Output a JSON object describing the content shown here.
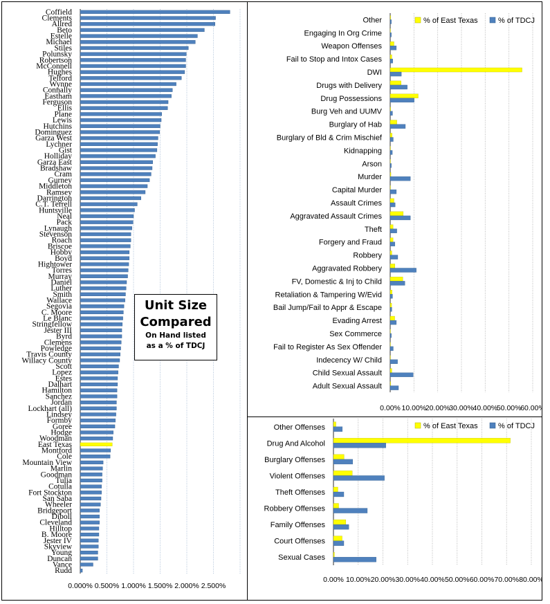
{
  "chart_data": [
    {
      "type": "bar",
      "orientation": "horizontal",
      "categories": [
        "Coffield",
        "Clements",
        "Allred",
        "Beto",
        "Estelle",
        "Michael",
        "Stiles",
        "Polunsky",
        "Robertson",
        "McConnell",
        "Hughes",
        "Telford",
        "Wynne",
        "Connally",
        "Eastham",
        "Ferguson",
        "Ellis",
        "Plane",
        "Lewis",
        "Hutchins",
        "Dominguez",
        "Garza West",
        "Lychner",
        "Gist",
        "Holliday",
        "Garza East",
        "Bradshaw",
        "Cram",
        "Gurney",
        "Middleton",
        "Ramsey",
        "Darrington",
        "C.T. Terrell",
        "Huntsville",
        "Neal",
        "Pack",
        "Lynaugh",
        "Stevenson",
        "Roach",
        "Briscoe",
        "Hobby",
        "Boyd",
        "Hightower",
        "Torres",
        "Murray",
        "Daniel",
        "Luther",
        "Smith",
        "Wallace",
        "Segovia",
        "C. Moore",
        "Le Blanc",
        "Stringfellow",
        "Jester III",
        "Byrd",
        "Clemens",
        "Powledge",
        "Travis County",
        "Willacy County",
        "Scott",
        "Lopez",
        "Estes",
        "Dalhart",
        "Hamilton",
        "Sanchez",
        "Jordan",
        "Lockhart (all)",
        "Lindsey",
        "Formby",
        "Goree",
        "Hodge",
        "Woodman",
        "East Texas",
        "Montford",
        "Cole",
        "Mountain View",
        "Marlin",
        "Goodman",
        "Tulia",
        "Cotulla",
        "Fort Stockton",
        "San Saba",
        "Wheeler",
        "Bridgeport",
        "Diboll",
        "Cleveland",
        "Hilltop",
        "B. Moore",
        "Jester IV",
        "Skyview",
        "Young",
        "Duncan",
        "Vance",
        "Rudd"
      ],
      "values": [
        2.81,
        2.54,
        2.53,
        2.33,
        2.2,
        2.16,
        2.03,
        1.99,
        1.98,
        1.98,
        1.96,
        1.9,
        1.8,
        1.73,
        1.71,
        1.65,
        1.64,
        1.53,
        1.52,
        1.5,
        1.49,
        1.46,
        1.45,
        1.44,
        1.41,
        1.36,
        1.35,
        1.33,
        1.3,
        1.26,
        1.22,
        1.14,
        1.07,
        1.02,
        1.0,
        0.99,
        0.97,
        0.95,
        0.95,
        0.94,
        0.92,
        0.92,
        0.91,
        0.9,
        0.89,
        0.87,
        0.86,
        0.85,
        0.84,
        0.82,
        0.81,
        0.8,
        0.79,
        0.78,
        0.78,
        0.77,
        0.76,
        0.75,
        0.74,
        0.72,
        0.71,
        0.7,
        0.7,
        0.69,
        0.69,
        0.68,
        0.68,
        0.67,
        0.66,
        0.65,
        0.62,
        0.61,
        0.6,
        0.57,
        0.56,
        0.43,
        0.42,
        0.41,
        0.41,
        0.4,
        0.4,
        0.39,
        0.38,
        0.36,
        0.36,
        0.36,
        0.35,
        0.35,
        0.34,
        0.34,
        0.33,
        0.33,
        0.24,
        0.04
      ],
      "highlight": "East Texas",
      "xlim": [
        0,
        3.0
      ],
      "xticks": [
        "0.000%",
        "0.500%",
        "1.000%",
        "1.500%",
        "2.000%",
        "2.500%"
      ],
      "grid": true,
      "colors": {
        "bar": "#4f81bd",
        "highlight": "#ffff00"
      }
    },
    {
      "type": "bar",
      "orientation": "horizontal",
      "categories": [
        "Other",
        "Engaging In Org Crime",
        "Weapon Offenses",
        "Fail to Stop and Intox Cases",
        "DWI",
        "Drugs with Delivery",
        "Drug Possessions",
        "Burg Veh and UUMV",
        "Burglary of Hab",
        "Burglary of Bld & Crim Mischief",
        "Kidnapping",
        "Arson",
        "Murder",
        "Capital Murder",
        "Assault Crimes",
        "Aggravated Assault Crimes",
        "Theft",
        "Forgery and Fraud",
        "Robbery",
        "Aggravated Robbery",
        "FV, Domestic & Inj to Child",
        "Retaliation & Tampering  W/Evid",
        "Bail Jump/Fail to Appr & Escape",
        "Evading Arrest",
        "Sex Commerce",
        "Fail to Register As Sex Offender",
        "Indecency W/ Child",
        "Child Sexual Assault",
        "Adult Sexual Assault"
      ],
      "series": [
        {
          "name": "% of East Texas",
          "values": [
            0.2,
            0.1,
            1.6,
            0.7,
            55.5,
            4.6,
            11.8,
            0.2,
            2.8,
            0.8,
            0.1,
            0.1,
            0.3,
            0.1,
            1.6,
            5.5,
            1.2,
            1.2,
            0.7,
            2.0,
            5.3,
            0.8,
            0.6,
            1.9,
            0.1,
            0.1,
            0.1,
            0.7,
            0.2
          ]
        },
        {
          "name": "% of TDCJ",
          "values": [
            0.5,
            0.5,
            2.6,
            1.1,
            4.7,
            7.2,
            10.1,
            1.0,
            6.4,
            1.3,
            0.9,
            0.5,
            8.5,
            2.6,
            2.1,
            8.5,
            2.8,
            2.0,
            3.2,
            11.0,
            6.2,
            1.0,
            0.7,
            2.6,
            0.5,
            1.3,
            3.1,
            9.7,
            3.5
          ]
        }
      ],
      "xlim": [
        0,
        60
      ],
      "xticks": [
        "0.00%",
        "10.00%",
        "20.00%",
        "30.00%",
        "40.00%",
        "50.00%",
        "60.00%"
      ],
      "legend": "top-right",
      "grid": true,
      "colors": {
        "% of East Texas": "#ffff00",
        "% of TDCJ": "#4f81bd"
      }
    },
    {
      "type": "bar",
      "orientation": "horizontal",
      "categories": [
        "Other Offenses",
        "Drug And Alcohol",
        "Burglary Offenses",
        "Violent Offenses",
        "Theft Offenses",
        "Robbery Offenses",
        "Family Offenses",
        "Court Offenses",
        "Sexual Cases"
      ],
      "series": [
        {
          "name": "% of East Texas",
          "values": [
            1.0,
            71.5,
            4.3,
            7.6,
            1.8,
            2.1,
            5.0,
            3.5,
            0.4
          ]
        },
        {
          "name": "% of TDCJ",
          "values": [
            3.6,
            21.2,
            7.8,
            20.6,
            4.2,
            13.7,
            6.2,
            4.2,
            17.3
          ]
        }
      ],
      "xlim": [
        0,
        80
      ],
      "xticks": [
        "0.00%",
        "10.00%",
        "20.00%",
        "30.00%",
        "40.00%",
        "50.00%",
        "60.00%",
        "70.00%",
        "80.00%"
      ],
      "legend": "top-right",
      "grid": true,
      "colors": {
        "% of East Texas": "#ffff00",
        "% of TDCJ": "#4f81bd"
      }
    }
  ],
  "annotation": {
    "title_line1": "Unit Size",
    "title_line2": "Compared",
    "subtitle_line1": "On Hand listed",
    "subtitle_line2": "as a % of TDCJ"
  }
}
